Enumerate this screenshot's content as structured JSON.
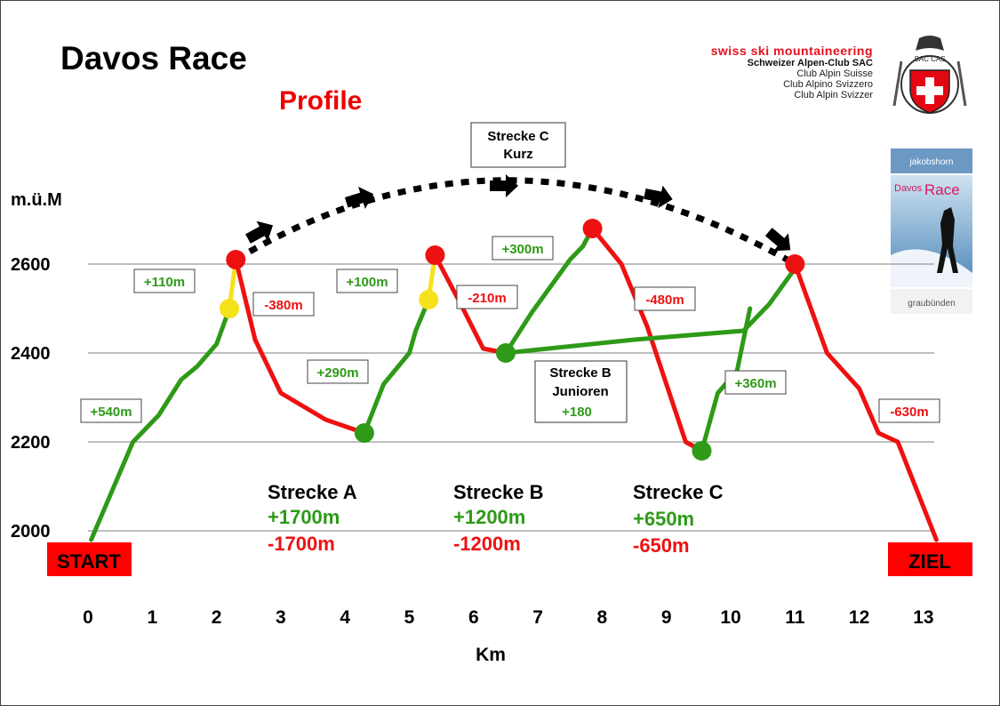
{
  "title": "Davos Race",
  "subtitle": "Profile",
  "logo": {
    "line1": "swiss ski mountaineering",
    "line2": "Schweizer Alpen-Club SAC",
    "line3": "Club Alpin Suisse",
    "line4": "Club Alpino Svizzero",
    "line5": "Club Alpin Svizzer",
    "badge_text": "SAC CAS"
  },
  "poster": {
    "top": "jakobshorn",
    "brand1": "Davos",
    "brand2": "Race",
    "bottom": "graubünden"
  },
  "colors": {
    "ascent": "#2e9a18",
    "descent": "#ee1111",
    "marker_yellow": "#f5e21a",
    "gridline": "#999999",
    "label_bg": "#ff0000"
  },
  "chart_data": {
    "type": "line",
    "title": "Davos Race",
    "subtitle": "Profile",
    "xlabel": "Km",
    "ylabel": "m.ü.M",
    "xlim": [
      0,
      13
    ],
    "ylim": [
      2000,
      2600
    ],
    "xticks": [
      0,
      1,
      2,
      3,
      4,
      5,
      6,
      7,
      8,
      9,
      10,
      11,
      12,
      13
    ],
    "yticks": [
      2000,
      2200,
      2400,
      2600
    ],
    "grid": "horizontal",
    "start_label": "START",
    "end_label": "ZIEL",
    "series": [
      {
        "style": "ascent",
        "points": [
          [
            0.05,
            1980
          ],
          [
            0.7,
            2200
          ],
          [
            1.1,
            2260
          ],
          [
            1.45,
            2340
          ],
          [
            1.7,
            2370
          ],
          [
            2.0,
            2420
          ],
          [
            2.2,
            2500
          ]
        ]
      },
      {
        "style": "boost",
        "points": [
          [
            2.2,
            2500
          ],
          [
            2.3,
            2610
          ]
        ]
      },
      {
        "style": "descent",
        "points": [
          [
            2.3,
            2610
          ],
          [
            2.6,
            2430
          ],
          [
            3.0,
            2310
          ],
          [
            3.7,
            2250
          ],
          [
            4.3,
            2220
          ]
        ]
      },
      {
        "style": "ascent",
        "points": [
          [
            4.3,
            2220
          ],
          [
            4.6,
            2330
          ],
          [
            5.0,
            2400
          ],
          [
            5.1,
            2450
          ],
          [
            5.3,
            2520
          ]
        ]
      },
      {
        "style": "boost",
        "points": [
          [
            5.3,
            2520
          ],
          [
            5.4,
            2620
          ]
        ]
      },
      {
        "style": "descent",
        "points": [
          [
            5.4,
            2620
          ],
          [
            5.8,
            2510
          ],
          [
            6.15,
            2410
          ],
          [
            6.5,
            2400
          ]
        ]
      },
      {
        "style": "ascent",
        "points": [
          [
            6.5,
            2400
          ],
          [
            6.9,
            2490
          ],
          [
            7.3,
            2570
          ],
          [
            7.5,
            2610
          ],
          [
            7.7,
            2640
          ],
          [
            7.85,
            2680
          ]
        ]
      },
      {
        "style": "descent",
        "points": [
          [
            7.85,
            2680
          ],
          [
            8.3,
            2600
          ],
          [
            8.7,
            2460
          ],
          [
            9.3,
            2200
          ],
          [
            9.55,
            2180
          ]
        ]
      },
      {
        "style": "ascent",
        "points": [
          [
            9.55,
            2180
          ],
          [
            9.8,
            2310
          ],
          [
            10.1,
            2360
          ],
          [
            10.3,
            2500
          ]
        ]
      },
      {
        "style": "ascent",
        "points": [
          [
            6.5,
            2400
          ],
          [
            8.5,
            2430
          ],
          [
            10.2,
            2450
          ],
          [
            10.6,
            2510
          ],
          [
            11.0,
            2590
          ]
        ]
      },
      {
        "style": "descent",
        "points": [
          [
            11.0,
            2600
          ],
          [
            11.5,
            2400
          ],
          [
            12.0,
            2320
          ],
          [
            12.3,
            2220
          ],
          [
            12.6,
            2200
          ],
          [
            13.2,
            1980
          ]
        ]
      }
    ],
    "markers": [
      {
        "x": 2.3,
        "y": 2610,
        "color": "red"
      },
      {
        "x": 2.2,
        "y": 2500,
        "color": "yellow"
      },
      {
        "x": 4.3,
        "y": 2220,
        "color": "green"
      },
      {
        "x": 5.4,
        "y": 2620,
        "color": "red"
      },
      {
        "x": 5.3,
        "y": 2520,
        "color": "yellow"
      },
      {
        "x": 6.5,
        "y": 2400,
        "color": "green"
      },
      {
        "x": 7.85,
        "y": 2680,
        "color": "red"
      },
      {
        "x": 9.55,
        "y": 2180,
        "color": "green"
      },
      {
        "x": 11.0,
        "y": 2600,
        "color": "red"
      }
    ],
    "shortcut_arc": {
      "label_line1": "Strecke C",
      "label_line2": "Kurz"
    },
    "segment_labels": [
      {
        "text": "+540m",
        "color": "ascent"
      },
      {
        "text": "+110m",
        "color": "ascent"
      },
      {
        "text": "-380m",
        "color": "descent"
      },
      {
        "text": "+290m",
        "color": "ascent"
      },
      {
        "text": "+100m",
        "color": "ascent"
      },
      {
        "text": "-210m",
        "color": "descent"
      },
      {
        "text": "+300m",
        "color": "ascent"
      },
      {
        "text": "-480m",
        "color": "descent"
      },
      {
        "text": "+360m",
        "color": "ascent"
      },
      {
        "text": "-630m",
        "color": "descent"
      }
    ],
    "strecke_b_junioren": {
      "line1": "Strecke B",
      "line2": "Junioren",
      "value": "+180"
    },
    "summaries": [
      {
        "name": "Strecke A",
        "ascent": "+1700m",
        "descent": "-1700m"
      },
      {
        "name": "Strecke B",
        "ascent": "+1200m",
        "descent": "-1200m"
      },
      {
        "name": "Strecke C",
        "ascent": "+650m",
        "descent": "-650m"
      }
    ]
  }
}
